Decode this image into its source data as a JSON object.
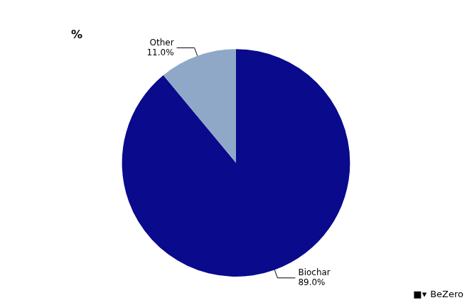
{
  "chart_data": {
    "type": "pie",
    "title": "%",
    "categories": [
      "Biochar",
      "Other"
    ],
    "values": [
      89.0,
      11.0
    ],
    "value_labels": [
      "89.0%",
      "11.0%"
    ],
    "colors": [
      "#0a0a8c",
      "#8fa8c8"
    ],
    "data_labels": true,
    "annotations": [
      "■▾",
      "BeZero"
    ]
  }
}
